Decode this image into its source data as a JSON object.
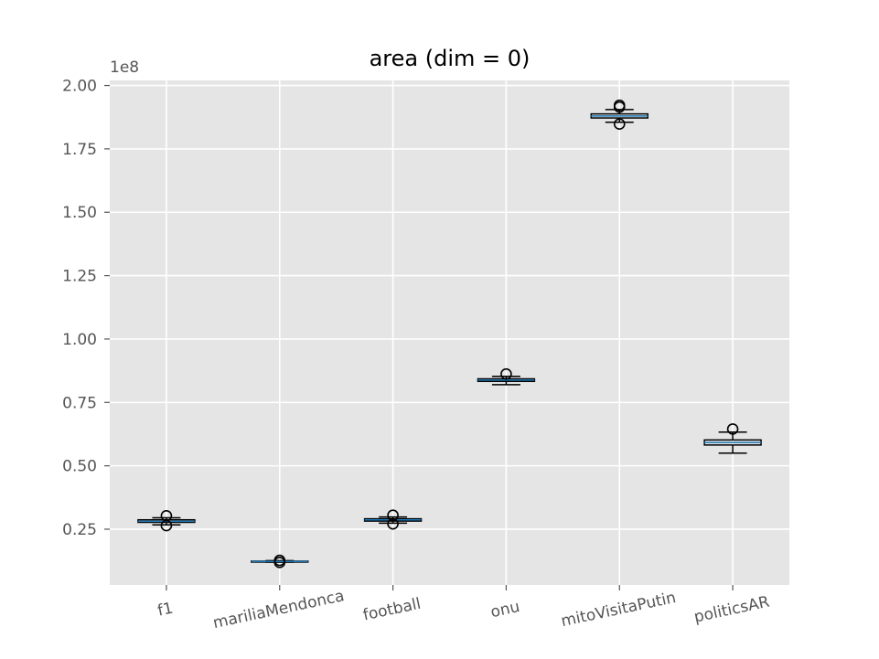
{
  "chart_data": {
    "type": "box",
    "title": "area (dim = 0)",
    "xlabel": "",
    "ylabel": "",
    "y_offset_label": "1e8",
    "ylim": [
      0.03,
      2.02
    ],
    "yticks": [
      0.25,
      0.5,
      0.75,
      1.0,
      1.25,
      1.5,
      1.75,
      2.0
    ],
    "ytick_labels": [
      "0.25",
      "0.50",
      "0.75",
      "1.00",
      "1.25",
      "1.50",
      "1.75",
      "2.00"
    ],
    "grid": true,
    "categories": [
      "f1",
      "mariliaMendonca",
      "football",
      "onu",
      "mitoVisitaPutin",
      "politicsAR"
    ],
    "boxes": [
      {
        "name": "f1",
        "whisker_low": 0.267,
        "q1": 0.277,
        "median": 0.281,
        "q3": 0.287,
        "whisker_high": 0.295,
        "fliers": [
          0.303,
          0.264
        ]
      },
      {
        "name": "mariliaMendonca",
        "whisker_low": 0.12,
        "q1": 0.122,
        "median": 0.123,
        "q3": 0.124,
        "whisker_high": 0.126,
        "fliers": [
          0.127,
          0.119
        ]
      },
      {
        "name": "football",
        "whisker_low": 0.274,
        "q1": 0.282,
        "median": 0.287,
        "q3": 0.291,
        "whisker_high": 0.298,
        "fliers": [
          0.305,
          0.271
        ]
      },
      {
        "name": "onu",
        "whisker_low": 0.82,
        "q1": 0.833,
        "median": 0.838,
        "q3": 0.843,
        "whisker_high": 0.853,
        "fliers": [
          0.862
        ]
      },
      {
        "name": "mitoVisitaPutin",
        "whisker_low": 1.855,
        "q1": 1.872,
        "median": 1.88,
        "q3": 1.888,
        "whisker_high": 1.905,
        "fliers": [
          1.922,
          1.915,
          1.848
        ]
      },
      {
        "name": "politicsAR",
        "whisker_low": 0.55,
        "q1": 0.582,
        "median": 0.592,
        "q3": 0.602,
        "whisker_high": 0.633,
        "fliers": [
          0.645
        ]
      }
    ],
    "colors": {
      "plot_bg": "#e5e5e5",
      "grid": "#ffffff",
      "box_edge": "#000000",
      "median": "#1f77b4",
      "box_fill": "#e5e5e5",
      "tick": "#555555"
    }
  }
}
